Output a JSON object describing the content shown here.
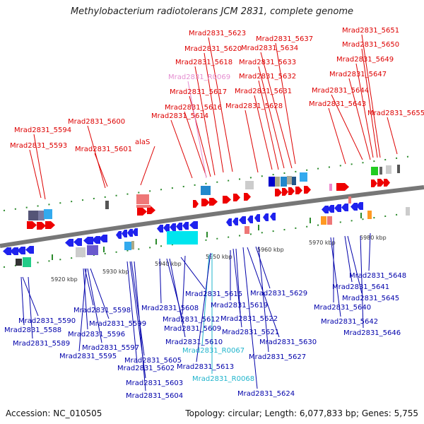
{
  "title": "Methylobacterium radiotolerans JCM 2831, complete genome",
  "footer": {
    "accession": "Accession: NC_010505",
    "summary": "Topology: circular; Length: 6,077,833 bp; Genes: 5,755"
  },
  "colors": {
    "forward_label": "#dd0000",
    "reverse_label": "#0000aa",
    "rna_forward_label": "#e58ed1",
    "rna_reverse_label": "#1fb4cc",
    "backbone": "#777777",
    "tick": "#2b8a2b"
  },
  "scale_labels": [
    "5920 kbp",
    "5930 kbp",
    "5940 kbp",
    "5950 kbp",
    "5960 kbp",
    "5970 kbp",
    "5980 kbp"
  ],
  "top_labels": [
    "Mrad2831_5594",
    "Mrad2831_5593",
    "Mrad2831_5600",
    "Mrad2831_5601",
    "alaS",
    "Mrad2831_5614",
    "Mrad2831_5616",
    "Mrad2831_5617",
    "Mrad2831_R0069",
    "Mrad2831_5618",
    "Mrad2831_5620",
    "Mrad2831_5623",
    "Mrad2831_5628",
    "Mrad2831_5631",
    "Mrad2831_5632",
    "Mrad2831_5633",
    "Mrad2831_5634",
    "Mrad2831_5637",
    "Mrad2831_5643",
    "Mrad2831_5644",
    "Mrad2831_5647",
    "Mrad2831_5649",
    "Mrad2831_5650",
    "Mrad2831_5651",
    "Mrad2831_5655"
  ],
  "bottom_labels": [
    "Mrad2831_5590",
    "Mrad2831_5588",
    "Mrad2831_5589",
    "Mrad2831_5598",
    "Mrad2831_5596",
    "Mrad2831_5597",
    "Mrad2831_5595",
    "Mrad2831_5599",
    "Mrad2831_5605",
    "Mrad2831_5602",
    "Mrad2831_5603",
    "Mrad2831_5604",
    "Mrad2831_5608",
    "Mrad2831_5612",
    "Mrad2831_5609",
    "Mrad2831_5610",
    "Mrad2831_5615",
    "Mrad2831_5619",
    "Mrad2831_5622",
    "Mrad2831_5621",
    "Mrad2831_R0067",
    "Mrad2831_5613",
    "Mrad2831_R0068",
    "Mrad2831_5629",
    "Mrad2831_5630",
    "Mrad2831_5627",
    "Mrad2831_5624",
    "Mrad2831_5641",
    "Mrad2831_5640",
    "Mrad2831_5645",
    "Mrad2831_5642",
    "Mrad2831_5646",
    "Mrad2831_5648"
  ]
}
